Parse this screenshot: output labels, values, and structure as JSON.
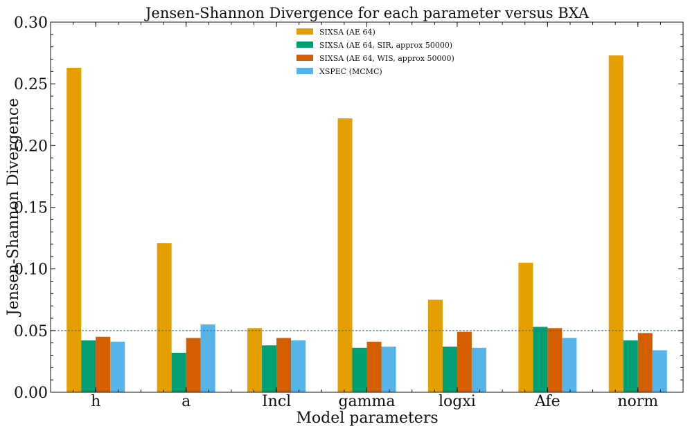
{
  "chart_data": {
    "type": "bar",
    "title": "Jensen-Shannon Divergence for each parameter versus BXA",
    "xlabel": "Model parameters",
    "ylabel": "Jensen-Shannon Divergence",
    "categories": [
      "h",
      "a",
      "Incl",
      "gamma",
      "logxi",
      "Afe",
      "norm"
    ],
    "ylim": [
      0,
      0.3
    ],
    "yticks": [
      0.0,
      0.05,
      0.1,
      0.15,
      0.2,
      0.25,
      0.3
    ],
    "ytick_labels": [
      "0.00",
      "0.05",
      "0.10",
      "0.15",
      "0.20",
      "0.25",
      "0.30"
    ],
    "reference_line": 0.05,
    "legend_position": "top-center",
    "series": [
      {
        "name": "SIXSA (AE 64)",
        "color": "#E69F00",
        "values": [
          0.263,
          0.121,
          0.052,
          0.222,
          0.075,
          0.105,
          0.273
        ]
      },
      {
        "name": "SIXSA (AE 64, SIR, approx 50000)",
        "color": "#009E73",
        "values": [
          0.042,
          0.032,
          0.038,
          0.036,
          0.037,
          0.053,
          0.042
        ]
      },
      {
        "name": "SIXSA (AE 64, WIS, approx 50000)",
        "color": "#D55E00",
        "values": [
          0.045,
          0.044,
          0.044,
          0.041,
          0.049,
          0.052,
          0.048
        ]
      },
      {
        "name": "XSPEC (MCMC)",
        "color": "#56B4E9",
        "values": [
          0.041,
          0.055,
          0.042,
          0.037,
          0.036,
          0.044,
          0.034
        ]
      }
    ]
  }
}
